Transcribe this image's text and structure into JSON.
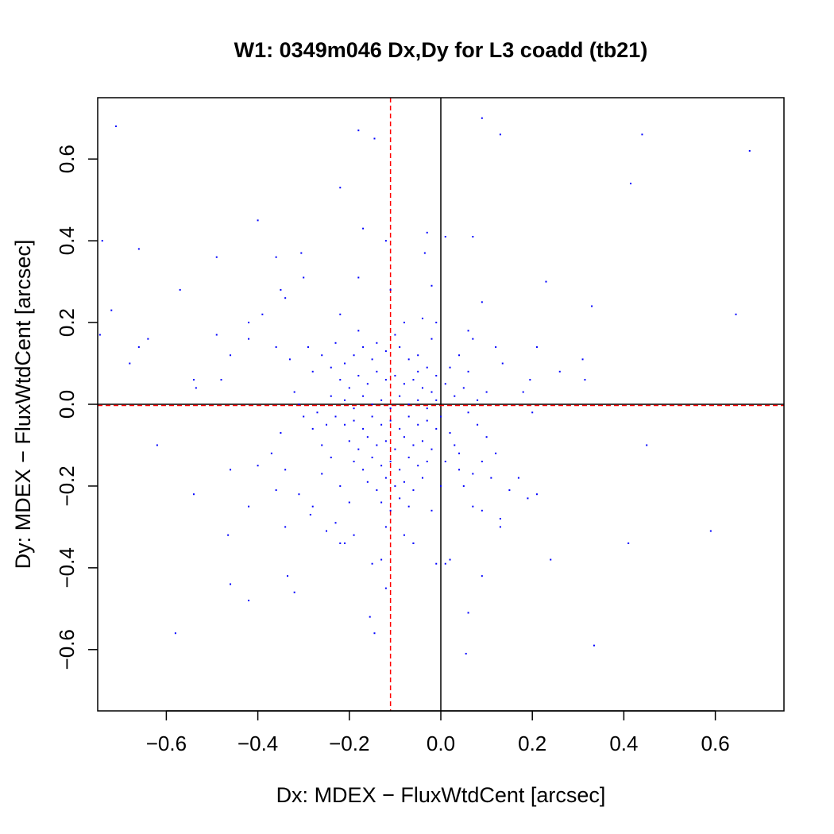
{
  "chart_data": {
    "type": "scatter",
    "title": "W1: 0349m046 Dx,Dy for L3 coadd (tb21)",
    "xlabel": "Dx: MDEX − FluxWtdCent [arcsec]",
    "ylabel": "Dy: MDEX − FluxWtdCent [arcsec]",
    "xlim": [
      -0.75,
      0.75
    ],
    "ylim": [
      -0.75,
      0.75
    ],
    "xticks": [
      -0.6,
      -0.4,
      -0.2,
      0.0,
      0.2,
      0.4,
      0.6
    ],
    "xtick_labels": [
      "−0.6",
      "−0.4",
      "−0.2",
      "0.0",
      "0.2",
      "0.4",
      "0.6"
    ],
    "yticks": [
      -0.6,
      -0.4,
      -0.2,
      0.0,
      0.2,
      0.4,
      0.6
    ],
    "ytick_labels": [
      "−0.6",
      "−0.4",
      "−0.2",
      "0.0",
      "0.2",
      "0.4",
      "0.6"
    ],
    "grid": false,
    "point_color": "#0000ff",
    "reference_lines": [
      {
        "orientation": "vertical",
        "value": 0.0,
        "color": "#000000",
        "style": "solid"
      },
      {
        "orientation": "horizontal",
        "value": 0.0,
        "color": "#000000",
        "style": "solid"
      },
      {
        "orientation": "vertical",
        "value": -0.11,
        "color": "#ff0000",
        "style": "dashed"
      },
      {
        "orientation": "horizontal",
        "value": -0.003,
        "color": "#ff0000",
        "style": "dashed"
      }
    ],
    "points": [
      [
        -0.71,
        0.68
      ],
      [
        -0.18,
        0.67
      ],
      [
        -0.145,
        0.65
      ],
      [
        0.09,
        0.7
      ],
      [
        0.13,
        0.66
      ],
      [
        0.44,
        0.66
      ],
      [
        0.675,
        0.62
      ],
      [
        -0.22,
        0.53
      ],
      [
        0.415,
        0.54
      ],
      [
        -0.74,
        0.4
      ],
      [
        -0.305,
        0.37
      ],
      [
        -0.36,
        0.36
      ],
      [
        -0.49,
        0.36
      ],
      [
        -0.66,
        0.38
      ],
      [
        -0.4,
        0.45
      ],
      [
        -0.17,
        0.43
      ],
      [
        -0.03,
        0.42
      ],
      [
        0.01,
        0.41
      ],
      [
        0.07,
        0.41
      ],
      [
        -0.12,
        0.4
      ],
      [
        -0.035,
        0.37
      ],
      [
        -0.57,
        0.28
      ],
      [
        -0.3,
        0.31
      ],
      [
        -0.18,
        0.31
      ],
      [
        -0.35,
        0.28
      ],
      [
        -0.34,
        0.26
      ],
      [
        -0.22,
        0.22
      ],
      [
        -0.11,
        0.28
      ],
      [
        -0.02,
        0.29
      ],
      [
        0.09,
        0.25
      ],
      [
        0.23,
        0.3
      ],
      [
        0.33,
        0.24
      ],
      [
        0.645,
        0.22
      ],
      [
        -0.72,
        0.23
      ],
      [
        -0.39,
        0.22
      ],
      [
        -0.42,
        0.2
      ],
      [
        -0.745,
        0.17
      ],
      [
        -0.49,
        0.17
      ],
      [
        -0.42,
        0.16
      ],
      [
        -0.36,
        0.14
      ],
      [
        -0.64,
        0.16
      ],
      [
        -0.66,
        0.14
      ],
      [
        -0.68,
        0.1
      ],
      [
        -0.46,
        0.12
      ],
      [
        -0.33,
        0.11
      ],
      [
        -0.54,
        0.06
      ],
      [
        -0.535,
        0.04
      ],
      [
        -0.48,
        0.06
      ],
      [
        -0.04,
        0.21
      ],
      [
        -0.01,
        0.2
      ],
      [
        0.06,
        0.18
      ],
      [
        0.07,
        0.16
      ],
      [
        0.12,
        0.14
      ],
      [
        0.135,
        0.1
      ],
      [
        0.21,
        0.14
      ],
      [
        0.26,
        0.08
      ],
      [
        0.31,
        0.11
      ],
      [
        0.315,
        0.06
      ],
      [
        0.195,
        0.06
      ],
      [
        0.18,
        0.03
      ],
      [
        0.2,
        -0.02
      ],
      [
        -0.62,
        -0.1
      ],
      [
        -0.54,
        -0.22
      ],
      [
        -0.46,
        -0.16
      ],
      [
        -0.42,
        -0.25
      ],
      [
        -0.4,
        -0.15
      ],
      [
        -0.465,
        -0.32
      ],
      [
        -0.36,
        -0.21
      ],
      [
        -0.34,
        -0.16
      ],
      [
        -0.31,
        -0.22
      ],
      [
        -0.34,
        -0.3
      ],
      [
        -0.335,
        -0.42
      ],
      [
        -0.46,
        -0.44
      ],
      [
        -0.42,
        -0.48
      ],
      [
        -0.58,
        -0.56
      ],
      [
        -0.32,
        -0.46
      ],
      [
        -0.285,
        -0.27
      ],
      [
        -0.25,
        -0.31
      ],
      [
        -0.22,
        -0.34
      ],
      [
        -0.21,
        -0.34
      ],
      [
        -0.23,
        -0.29
      ],
      [
        -0.19,
        -0.32
      ],
      [
        -0.15,
        -0.39
      ],
      [
        -0.13,
        -0.38
      ],
      [
        -0.12,
        -0.3
      ],
      [
        -0.12,
        -0.45
      ],
      [
        -0.155,
        -0.52
      ],
      [
        -0.145,
        -0.56
      ],
      [
        -0.08,
        -0.32
      ],
      [
        -0.06,
        -0.34
      ],
      [
        -0.06,
        -0.34
      ],
      [
        -0.02,
        -0.26
      ],
      [
        -0.01,
        -0.39
      ],
      [
        0.01,
        -0.39
      ],
      [
        0.02,
        -0.38
      ],
      [
        0.06,
        -0.51
      ],
      [
        0.055,
        -0.61
      ],
      [
        0.07,
        -0.25
      ],
      [
        0.09,
        -0.26
      ],
      [
        0.13,
        -0.28
      ],
      [
        0.13,
        -0.3
      ],
      [
        0.09,
        -0.42
      ],
      [
        0.15,
        -0.21
      ],
      [
        0.17,
        -0.18
      ],
      [
        0.19,
        -0.23
      ],
      [
        0.21,
        -0.22
      ],
      [
        0.24,
        -0.38
      ],
      [
        0.335,
        -0.59
      ],
      [
        0.41,
        -0.34
      ],
      [
        0.45,
        -0.1
      ],
      [
        0.59,
        -0.31
      ],
      [
        0.12,
        -0.12
      ],
      [
        0.1,
        -0.08
      ],
      [
        0.08,
        -0.05
      ],
      [
        0.06,
        -0.02
      ],
      [
        0.05,
        0.04
      ],
      [
        0.03,
        0.02
      ],
      [
        0.04,
        -0.12
      ],
      [
        0.07,
        -0.17
      ],
      [
        0.05,
        -0.2
      ],
      [
        -0.25,
        -0.05
      ],
      [
        -0.24,
        0.02
      ],
      [
        -0.27,
        -0.02
      ],
      [
        -0.28,
        0.08
      ],
      [
        -0.26,
        0.12
      ],
      [
        -0.23,
        0.15
      ],
      [
        -0.21,
        0.1
      ],
      [
        -0.19,
        0.12
      ],
      [
        -0.17,
        0.14
      ],
      [
        -0.14,
        0.15
      ],
      [
        -0.12,
        0.13
      ],
      [
        -0.09,
        0.14
      ],
      [
        -0.07,
        0.11
      ],
      [
        -0.05,
        0.12
      ],
      [
        -0.03,
        0.09
      ],
      [
        -0.01,
        0.07
      ],
      [
        0.01,
        0.05
      ],
      [
        0.02,
        0.09
      ],
      [
        -0.22,
        0.06
      ],
      [
        -0.2,
        0.04
      ],
      [
        -0.18,
        0.07
      ],
      [
        -0.16,
        0.05
      ],
      [
        -0.14,
        0.08
      ],
      [
        -0.12,
        0.06
      ],
      [
        -0.1,
        0.07
      ],
      [
        -0.08,
        0.05
      ],
      [
        -0.06,
        0.06
      ],
      [
        -0.04,
        0.04
      ],
      [
        -0.02,
        0.03
      ],
      [
        -0.21,
        0.01
      ],
      [
        -0.19,
        -0.01
      ],
      [
        -0.17,
        0.02
      ],
      [
        -0.15,
        0.0
      ],
      [
        -0.13,
        0.01
      ],
      [
        -0.11,
        -0.01
      ],
      [
        -0.09,
        0.02
      ],
      [
        -0.07,
        0.0
      ],
      [
        -0.05,
        0.01
      ],
      [
        -0.03,
        -0.01
      ],
      [
        -0.01,
        0.01
      ],
      [
        -0.23,
        -0.03
      ],
      [
        -0.21,
        -0.05
      ],
      [
        -0.19,
        -0.04
      ],
      [
        -0.17,
        -0.06
      ],
      [
        -0.15,
        -0.03
      ],
      [
        -0.13,
        -0.05
      ],
      [
        -0.11,
        -0.04
      ],
      [
        -0.09,
        -0.06
      ],
      [
        -0.07,
        -0.03
      ],
      [
        -0.05,
        -0.05
      ],
      [
        -0.03,
        -0.04
      ],
      [
        -0.01,
        -0.06
      ],
      [
        -0.2,
        -0.09
      ],
      [
        -0.18,
        -0.11
      ],
      [
        -0.16,
        -0.08
      ],
      [
        -0.14,
        -0.1
      ],
      [
        -0.12,
        -0.09
      ],
      [
        -0.1,
        -0.11
      ],
      [
        -0.08,
        -0.08
      ],
      [
        -0.06,
        -0.1
      ],
      [
        -0.04,
        -0.09
      ],
      [
        -0.02,
        -0.11
      ],
      [
        -0.19,
        -0.14
      ],
      [
        -0.17,
        -0.16
      ],
      [
        -0.15,
        -0.13
      ],
      [
        -0.13,
        -0.15
      ],
      [
        -0.11,
        -0.14
      ],
      [
        -0.09,
        -0.16
      ],
      [
        -0.07,
        -0.13
      ],
      [
        -0.05,
        -0.15
      ],
      [
        -0.03,
        -0.14
      ],
      [
        -0.16,
        -0.19
      ],
      [
        -0.14,
        -0.21
      ],
      [
        -0.12,
        -0.18
      ],
      [
        -0.1,
        -0.2
      ],
      [
        -0.08,
        -0.19
      ],
      [
        -0.06,
        -0.21
      ],
      [
        -0.04,
        -0.18
      ],
      [
        -0.13,
        -0.24
      ],
      [
        -0.11,
        -0.26
      ],
      [
        -0.09,
        -0.23
      ],
      [
        -0.07,
        -0.25
      ],
      [
        0.0,
        -0.03
      ],
      [
        0.02,
        -0.07
      ],
      [
        0.03,
        -0.1
      ],
      [
        0.01,
        -0.14
      ],
      [
        -0.26,
        -0.1
      ],
      [
        -0.28,
        -0.06
      ],
      [
        -0.3,
        -0.03
      ],
      [
        -0.32,
        0.03
      ],
      [
        -0.24,
        -0.13
      ],
      [
        -0.26,
        -0.17
      ],
      [
        -0.22,
        -0.2
      ],
      [
        -0.2,
        -0.24
      ],
      [
        -0.24,
        0.09
      ],
      [
        -0.15,
        0.11
      ],
      [
        -0.05,
        0.08
      ],
      [
        0.04,
        0.12
      ],
      [
        0.06,
        0.08
      ],
      [
        -0.18,
        0.18
      ],
      [
        -0.1,
        0.17
      ],
      [
        -0.08,
        0.2
      ],
      [
        -0.02,
        0.16
      ],
      [
        -0.29,
        0.14
      ],
      [
        -0.31,
        0.0
      ],
      [
        -0.35,
        -0.07
      ],
      [
        -0.37,
        -0.12
      ],
      [
        0.09,
        -0.14
      ],
      [
        0.11,
        -0.18
      ],
      [
        0.08,
        0.01
      ],
      [
        0.1,
        0.03
      ],
      [
        0.04,
        -0.16
      ],
      [
        0.0,
        -0.2
      ],
      [
        -0.28,
        -0.25
      ]
    ]
  }
}
